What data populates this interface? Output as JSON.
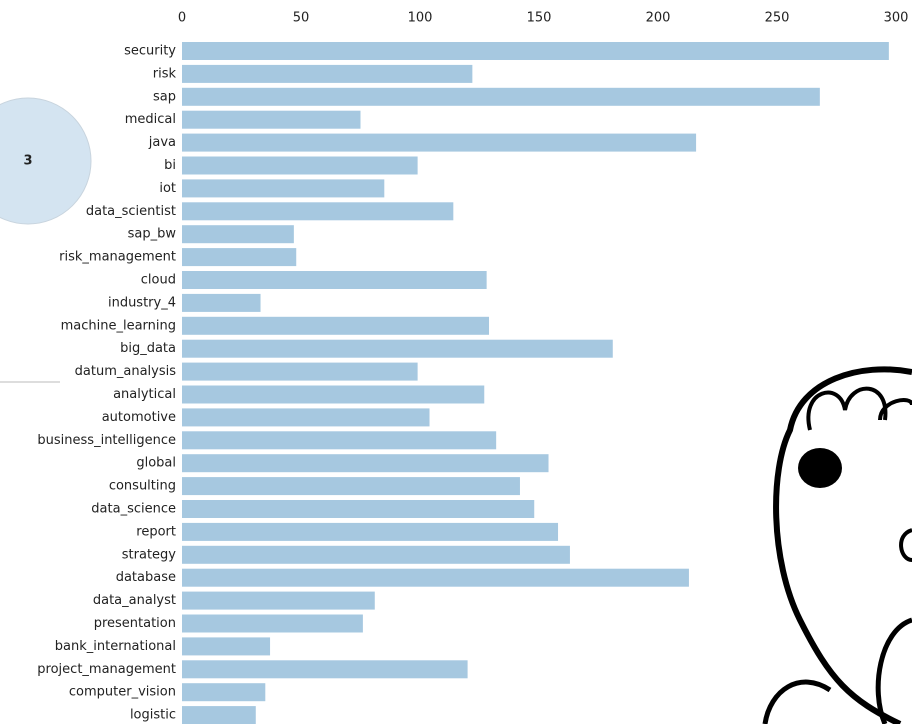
{
  "badge": "3",
  "chart_data": {
    "type": "barh",
    "color": "#a6c8e0",
    "categories": [
      "security",
      "risk",
      "sap",
      "medical",
      "java",
      "bi",
      "iot",
      "data_scientist",
      "sap_bw",
      "risk_management",
      "cloud",
      "industry_4",
      "machine_learning",
      "big_data",
      "datum_analysis",
      "analytical",
      "automotive",
      "business_intelligence",
      "global",
      "consulting",
      "data_science",
      "report",
      "strategy",
      "database",
      "data_analyst",
      "presentation",
      "bank_international",
      "project_management",
      "computer_vision",
      "logistic"
    ],
    "values": [
      297,
      122,
      268,
      75,
      216,
      99,
      85,
      114,
      47,
      48,
      128,
      33,
      129,
      181,
      99,
      127,
      104,
      132,
      154,
      142,
      148,
      158,
      163,
      213,
      81,
      76,
      37,
      120,
      35,
      31
    ],
    "xlim": [
      0,
      300
    ],
    "xticks": [
      0,
      50,
      100,
      150,
      200,
      250,
      300
    ]
  }
}
